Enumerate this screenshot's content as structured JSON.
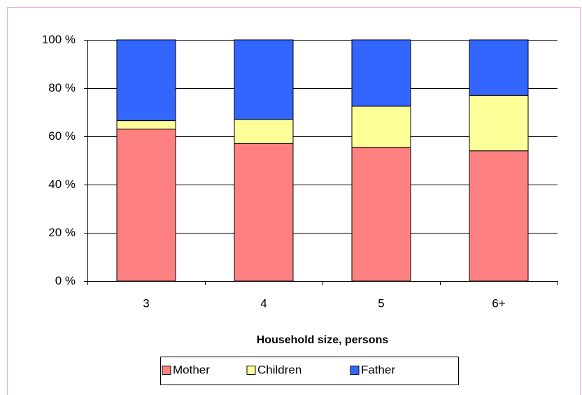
{
  "chart_data": {
    "type": "stacked_bar",
    "x_label": "Household size, persons",
    "categories": [
      "3",
      "4",
      "5",
      "6+"
    ],
    "series": [
      {
        "name": "Mother",
        "color": "#ff8080",
        "values": [
          63,
          57,
          55.5,
          54
        ]
      },
      {
        "name": "Children",
        "color": "#ffff99",
        "values": [
          3.5,
          10,
          17,
          23
        ]
      },
      {
        "name": "Father",
        "color": "#3366ff",
        "values": [
          33.5,
          33,
          27.5,
          23
        ]
      }
    ],
    "ylim": [
      0,
      100
    ],
    "yticks": [
      {
        "value": 0,
        "label": "0 %"
      },
      {
        "value": 20,
        "label": "20 %"
      },
      {
        "value": 40,
        "label": "40 %"
      },
      {
        "value": 60,
        "label": "60 %"
      },
      {
        "value": 80,
        "label": "80 %"
      },
      {
        "value": 100,
        "label": "100 %"
      }
    ],
    "grid": true,
    "legend": "bottom"
  }
}
